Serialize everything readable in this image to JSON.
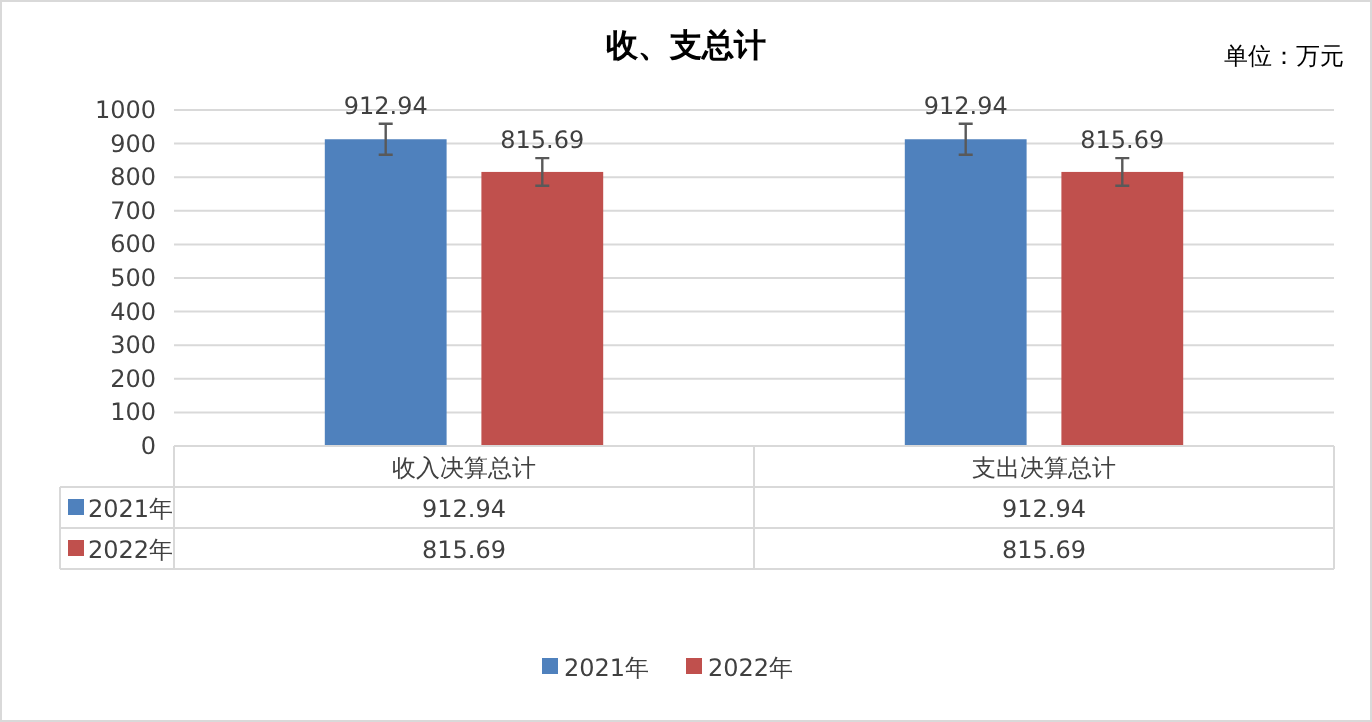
{
  "chart_data": {
    "type": "bar",
    "title": "收、支总计",
    "annotations": [
      "单位：万元"
    ],
    "categories": [
      "收入决算总计",
      "支出决算总计"
    ],
    "series": [
      {
        "name": "2021年",
        "color": "#4f81bd",
        "values": [
          912.94,
          912.94
        ],
        "errors": [
          46,
          46
        ],
        "value_labels": [
          "912.94",
          "912.94"
        ]
      },
      {
        "name": "2022年",
        "color": "#c0504d",
        "values": [
          815.69,
          815.69
        ],
        "errors": [
          41,
          41
        ],
        "value_labels": [
          "815.69",
          "815.69"
        ]
      }
    ],
    "ylim": [
      0,
      1000
    ],
    "yticks": [
      0,
      100,
      200,
      300,
      400,
      500,
      600,
      700,
      800,
      900,
      1000
    ],
    "grid": "y",
    "legend": "bottom"
  }
}
